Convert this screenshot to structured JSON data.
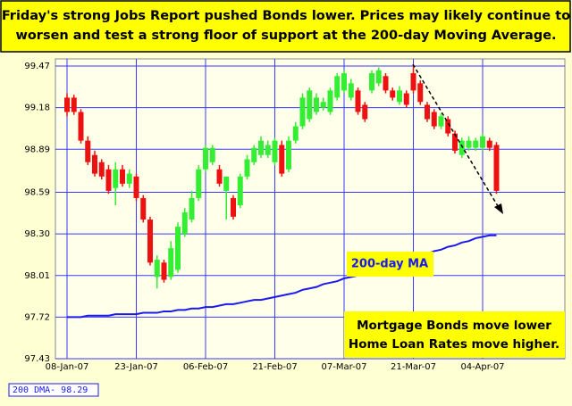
{
  "chart_data": {
    "type": "candlestick",
    "title_lines": [
      "Friday's strong Jobs Report pushed Bonds lower.  Prices may likely continue to",
      "worsen and test a strong floor of support at the 200-day Moving Average."
    ],
    "categories": [
      "08-Jan-07",
      null,
      null,
      null,
      null,
      null,
      null,
      null,
      null,
      null,
      "23-Jan-07",
      null,
      null,
      null,
      null,
      null,
      null,
      null,
      null,
      null,
      "06-Feb-07",
      null,
      null,
      null,
      null,
      null,
      null,
      null,
      null,
      null,
      "21-Feb-07",
      null,
      null,
      null,
      null,
      null,
      null,
      null,
      null,
      null,
      "07-Mar-07",
      null,
      null,
      null,
      null,
      null,
      null,
      null,
      null,
      null,
      "21-Mar-07",
      null,
      null,
      null,
      null,
      null,
      null,
      null,
      null,
      null,
      "04-Apr-07",
      null,
      null
    ],
    "open": [
      99.25,
      99.25,
      99.15,
      98.95,
      98.85,
      98.8,
      98.75,
      98.62,
      98.75,
      98.65,
      98.7,
      98.55,
      98.4,
      98.0,
      98.1,
      98.0,
      98.05,
      98.3,
      98.4,
      98.55,
      98.75,
      98.8,
      98.75,
      98.6,
      98.55,
      98.5,
      98.7,
      98.8,
      98.85,
      98.85,
      98.8,
      98.92,
      98.75,
      98.95,
      99.05,
      99.1,
      99.15,
      99.18,
      99.15,
      99.25,
      99.3,
      99.25,
      99.3,
      99.2,
      99.3,
      99.35,
      99.4,
      99.3,
      99.22,
      99.28,
      99.42,
      99.35,
      99.2,
      99.15,
      99.05,
      99.1,
      99.0,
      98.85,
      98.9,
      98.9,
      98.9,
      98.95,
      98.92
    ],
    "high": [
      99.28,
      99.27,
      99.17,
      98.98,
      98.88,
      98.82,
      98.78,
      98.8,
      98.78,
      98.75,
      98.72,
      98.57,
      98.42,
      98.15,
      98.12,
      98.25,
      98.38,
      98.48,
      98.6,
      98.78,
      98.92,
      98.92,
      98.78,
      98.7,
      98.57,
      98.72,
      98.85,
      98.92,
      98.98,
      98.95,
      98.97,
      98.95,
      98.98,
      99.08,
      99.28,
      99.32,
      99.28,
      99.25,
      99.32,
      99.42,
      99.44,
      99.38,
      99.32,
      99.22,
      99.44,
      99.46,
      99.42,
      99.32,
      99.33,
      99.3,
      99.47,
      99.37,
      99.22,
      99.17,
      99.14,
      99.12,
      99.02,
      98.97,
      98.98,
      98.97,
      99.0,
      98.97,
      98.94
    ],
    "low": [
      99.12,
      99.13,
      98.93,
      98.78,
      98.7,
      98.68,
      98.58,
      98.5,
      98.63,
      98.62,
      98.53,
      98.38,
      98.08,
      97.92,
      97.96,
      97.98,
      98.03,
      98.28,
      98.38,
      98.53,
      98.73,
      98.78,
      98.63,
      98.4,
      98.4,
      98.48,
      98.68,
      98.78,
      98.83,
      98.83,
      98.78,
      98.7,
      98.73,
      98.93,
      99.03,
      99.08,
      99.13,
      99.16,
      99.13,
      99.23,
      99.28,
      99.23,
      99.13,
      99.08,
      99.28,
      99.33,
      99.28,
      99.23,
      99.2,
      99.18,
      99.28,
      99.2,
      99.08,
      99.03,
      99.03,
      98.98,
      98.86,
      98.83,
      98.88,
      98.88,
      98.88,
      98.88,
      98.58
    ],
    "close": [
      99.15,
      99.15,
      98.95,
      98.8,
      98.72,
      98.7,
      98.6,
      98.75,
      98.65,
      98.72,
      98.55,
      98.4,
      98.1,
      98.12,
      97.98,
      98.2,
      98.35,
      98.45,
      98.55,
      98.75,
      98.9,
      98.9,
      98.65,
      98.7,
      98.42,
      98.7,
      98.82,
      98.9,
      98.95,
      98.92,
      98.95,
      98.72,
      98.95,
      99.05,
      99.25,
      99.3,
      99.25,
      99.22,
      99.3,
      99.4,
      99.42,
      99.35,
      99.15,
      99.1,
      99.42,
      99.44,
      99.3,
      99.25,
      99.3,
      99.2,
      99.3,
      99.22,
      99.1,
      99.05,
      99.12,
      99.0,
      98.88,
      98.95,
      98.95,
      98.95,
      98.98,
      98.9,
      98.6
    ],
    "up_color": "#33ee33",
    "down_color": "#ee1111",
    "moving_average": {
      "name": "200 DMA- 98.29",
      "color": "#1a1aee",
      "values": [
        97.72,
        97.72,
        97.72,
        97.73,
        97.73,
        97.73,
        97.73,
        97.74,
        97.74,
        97.74,
        97.74,
        97.75,
        97.75,
        97.75,
        97.76,
        97.76,
        97.77,
        97.77,
        97.78,
        97.78,
        97.79,
        97.79,
        97.8,
        97.81,
        97.81,
        97.82,
        97.83,
        97.84,
        97.84,
        97.85,
        97.86,
        97.87,
        97.88,
        97.89,
        97.91,
        97.92,
        97.93,
        97.95,
        97.96,
        97.97,
        97.99,
        98.0,
        98.01,
        98.03,
        98.04,
        98.06,
        98.07,
        98.09,
        98.1,
        98.12,
        98.13,
        98.15,
        98.16,
        98.18,
        98.19,
        98.21,
        98.22,
        98.24,
        98.25,
        98.27,
        98.28,
        98.29,
        98.29
      ]
    },
    "ylim": [
      97.43,
      99.52
    ],
    "yticks": [
      97.43,
      97.72,
      98.01,
      {
        "value": 98.3,
        "label": "98.30"
      },
      98.59,
      98.89,
      99.18,
      99.47
    ],
    "grid": true,
    "annotations": [
      {
        "text": "200-day MA"
      },
      {
        "lines": [
          "Mortgage Bonds move lower",
          "Home Loan Rates move higher."
        ]
      }
    ]
  }
}
